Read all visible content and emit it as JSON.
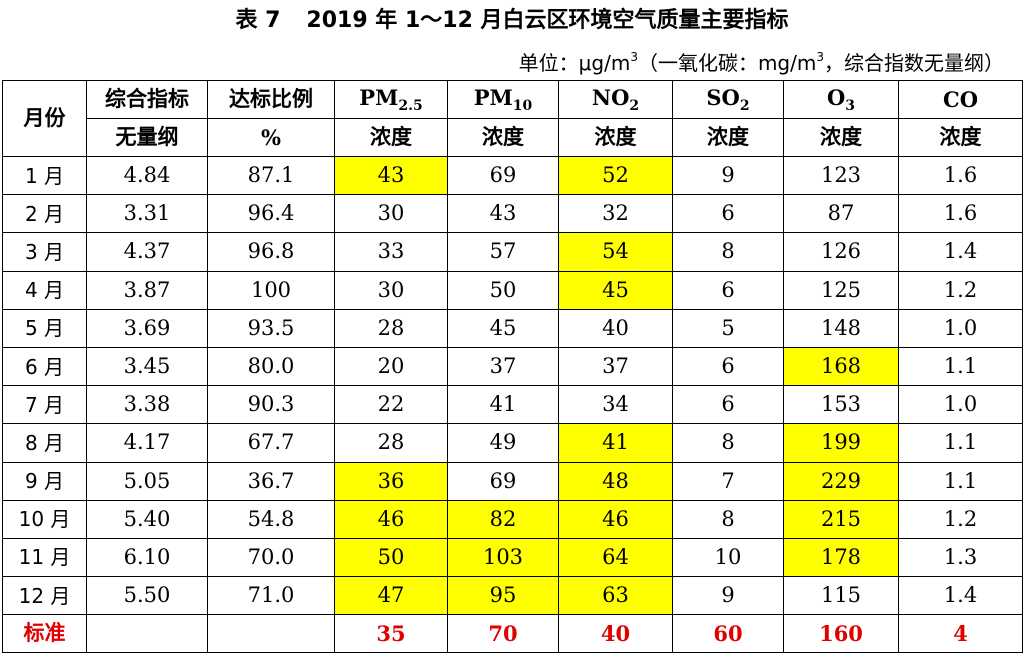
{
  "title": {
    "number": "表 7",
    "text": "2019 年 1～12 月白云区环境空气质量主要指标"
  },
  "unit_note": {
    "prefix": "单位：μg/m",
    "sup1": "3",
    "middle": "（一氧化碳：mg/m",
    "sup2": "3",
    "suffix": "，综合指数无量纲）"
  },
  "table": {
    "header_month": "月份",
    "header_row1": {
      "composite": "综合指标",
      "ratio": "达标比例",
      "pm25_base": "PM",
      "pm25_sub": "2.5",
      "pm10_base": "PM",
      "pm10_sub": "10",
      "no2_base": "NO",
      "no2_sub": "2",
      "so2_base": "SO",
      "so2_sub": "2",
      "o3_base": "O",
      "o3_sub": "3",
      "co": "CO"
    },
    "header_row2": {
      "composite": "无量纲",
      "ratio": "%",
      "conc_pm25": "浓度",
      "conc_pm10": "浓度",
      "conc_no2": "浓度",
      "conc_so2": "浓度",
      "conc_o3": "浓度",
      "conc_co": "浓度"
    },
    "rows": [
      {
        "month": "1 月",
        "composite": "4.84",
        "ratio": "87.1",
        "pm25": "43",
        "pm10": "69",
        "no2": "52",
        "so2": "9",
        "o3": "123",
        "co": "1.6",
        "hl": [
          "pm25",
          "no2"
        ]
      },
      {
        "month": "2 月",
        "composite": "3.31",
        "ratio": "96.4",
        "pm25": "30",
        "pm10": "43",
        "no2": "32",
        "so2": "6",
        "o3": "87",
        "co": "1.6",
        "hl": []
      },
      {
        "month": "3 月",
        "composite": "4.37",
        "ratio": "96.8",
        "pm25": "33",
        "pm10": "57",
        "no2": "54",
        "so2": "8",
        "o3": "126",
        "co": "1.4",
        "hl": [
          "no2"
        ]
      },
      {
        "month": "4 月",
        "composite": "3.87",
        "ratio": "100",
        "pm25": "30",
        "pm10": "50",
        "no2": "45",
        "so2": "6",
        "o3": "125",
        "co": "1.2",
        "hl": [
          "no2"
        ]
      },
      {
        "month": "5 月",
        "composite": "3.69",
        "ratio": "93.5",
        "pm25": "28",
        "pm10": "45",
        "no2": "40",
        "so2": "5",
        "o3": "148",
        "co": "1.0",
        "hl": []
      },
      {
        "month": "6 月",
        "composite": "3.45",
        "ratio": "80.0",
        "pm25": "20",
        "pm10": "37",
        "no2": "37",
        "so2": "6",
        "o3": "168",
        "co": "1.1",
        "hl": [
          "o3"
        ]
      },
      {
        "month": "7 月",
        "composite": "3.38",
        "ratio": "90.3",
        "pm25": "22",
        "pm10": "41",
        "no2": "34",
        "so2": "6",
        "o3": "153",
        "co": "1.0",
        "hl": []
      },
      {
        "month": "8 月",
        "composite": "4.17",
        "ratio": "67.7",
        "pm25": "28",
        "pm10": "49",
        "no2": "41",
        "so2": "8",
        "o3": "199",
        "co": "1.1",
        "hl": [
          "no2",
          "o3"
        ]
      },
      {
        "month": "9 月",
        "composite": "5.05",
        "ratio": "36.7",
        "pm25": "36",
        "pm10": "69",
        "no2": "48",
        "so2": "7",
        "o3": "229",
        "co": "1.1",
        "hl": [
          "pm25",
          "no2",
          "o3"
        ]
      },
      {
        "month": "10 月",
        "composite": "5.40",
        "ratio": "54.8",
        "pm25": "46",
        "pm10": "82",
        "no2": "46",
        "so2": "8",
        "o3": "215",
        "co": "1.2",
        "hl": [
          "pm25",
          "pm10",
          "no2",
          "o3"
        ]
      },
      {
        "month": "11 月",
        "composite": "6.10",
        "ratio": "70.0",
        "pm25": "50",
        "pm10": "103",
        "no2": "64",
        "so2": "10",
        "o3": "178",
        "co": "1.3",
        "hl": [
          "pm25",
          "pm10",
          "no2",
          "o3"
        ]
      },
      {
        "month": "12 月",
        "composite": "5.50",
        "ratio": "71.0",
        "pm25": "47",
        "pm10": "95",
        "no2": "63",
        "so2": "9",
        "o3": "115",
        "co": "1.4",
        "hl": [
          "pm25",
          "pm10",
          "no2"
        ]
      }
    ],
    "standard": {
      "label": "标准",
      "composite": "",
      "ratio": "",
      "pm25": "35",
      "pm10": "70",
      "no2": "40",
      "so2": "60",
      "o3": "160",
      "co": "4"
    },
    "colors": {
      "highlight": "#ffff00",
      "standard_text": "#e00000"
    }
  }
}
